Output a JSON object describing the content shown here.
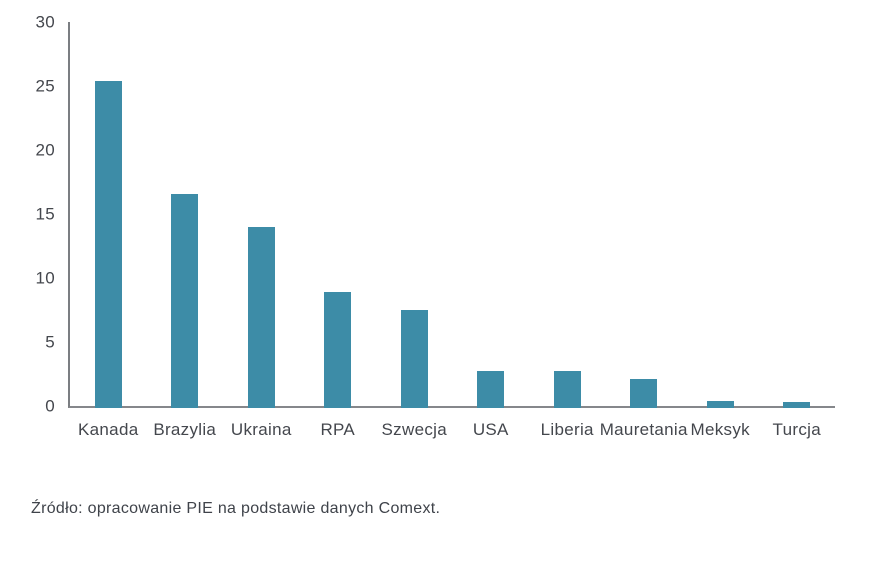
{
  "chart_data": {
    "type": "bar",
    "categories": [
      "Kanada",
      "Brazylia",
      "Ukraina",
      "RPA",
      "Szwecja",
      "USA",
      "Liberia",
      "Mauretania",
      "Meksyk",
      "Turcja"
    ],
    "values": [
      25.4,
      16.6,
      14.0,
      8.9,
      7.5,
      2.7,
      2.7,
      2.1,
      0.4,
      0.3
    ],
    "title": "",
    "xlabel": "",
    "ylabel": "",
    "ylim": [
      0,
      30
    ],
    "yticks": [
      0,
      5,
      10,
      15,
      20,
      25,
      30
    ],
    "grid": false,
    "legend": "none",
    "bar_color": "#3d8ca7",
    "axis_color": "#7b7e82",
    "text_color": "#44474d"
  },
  "source": {
    "text": "Źródło: opracowanie PIE na podstawie danych Comext."
  }
}
